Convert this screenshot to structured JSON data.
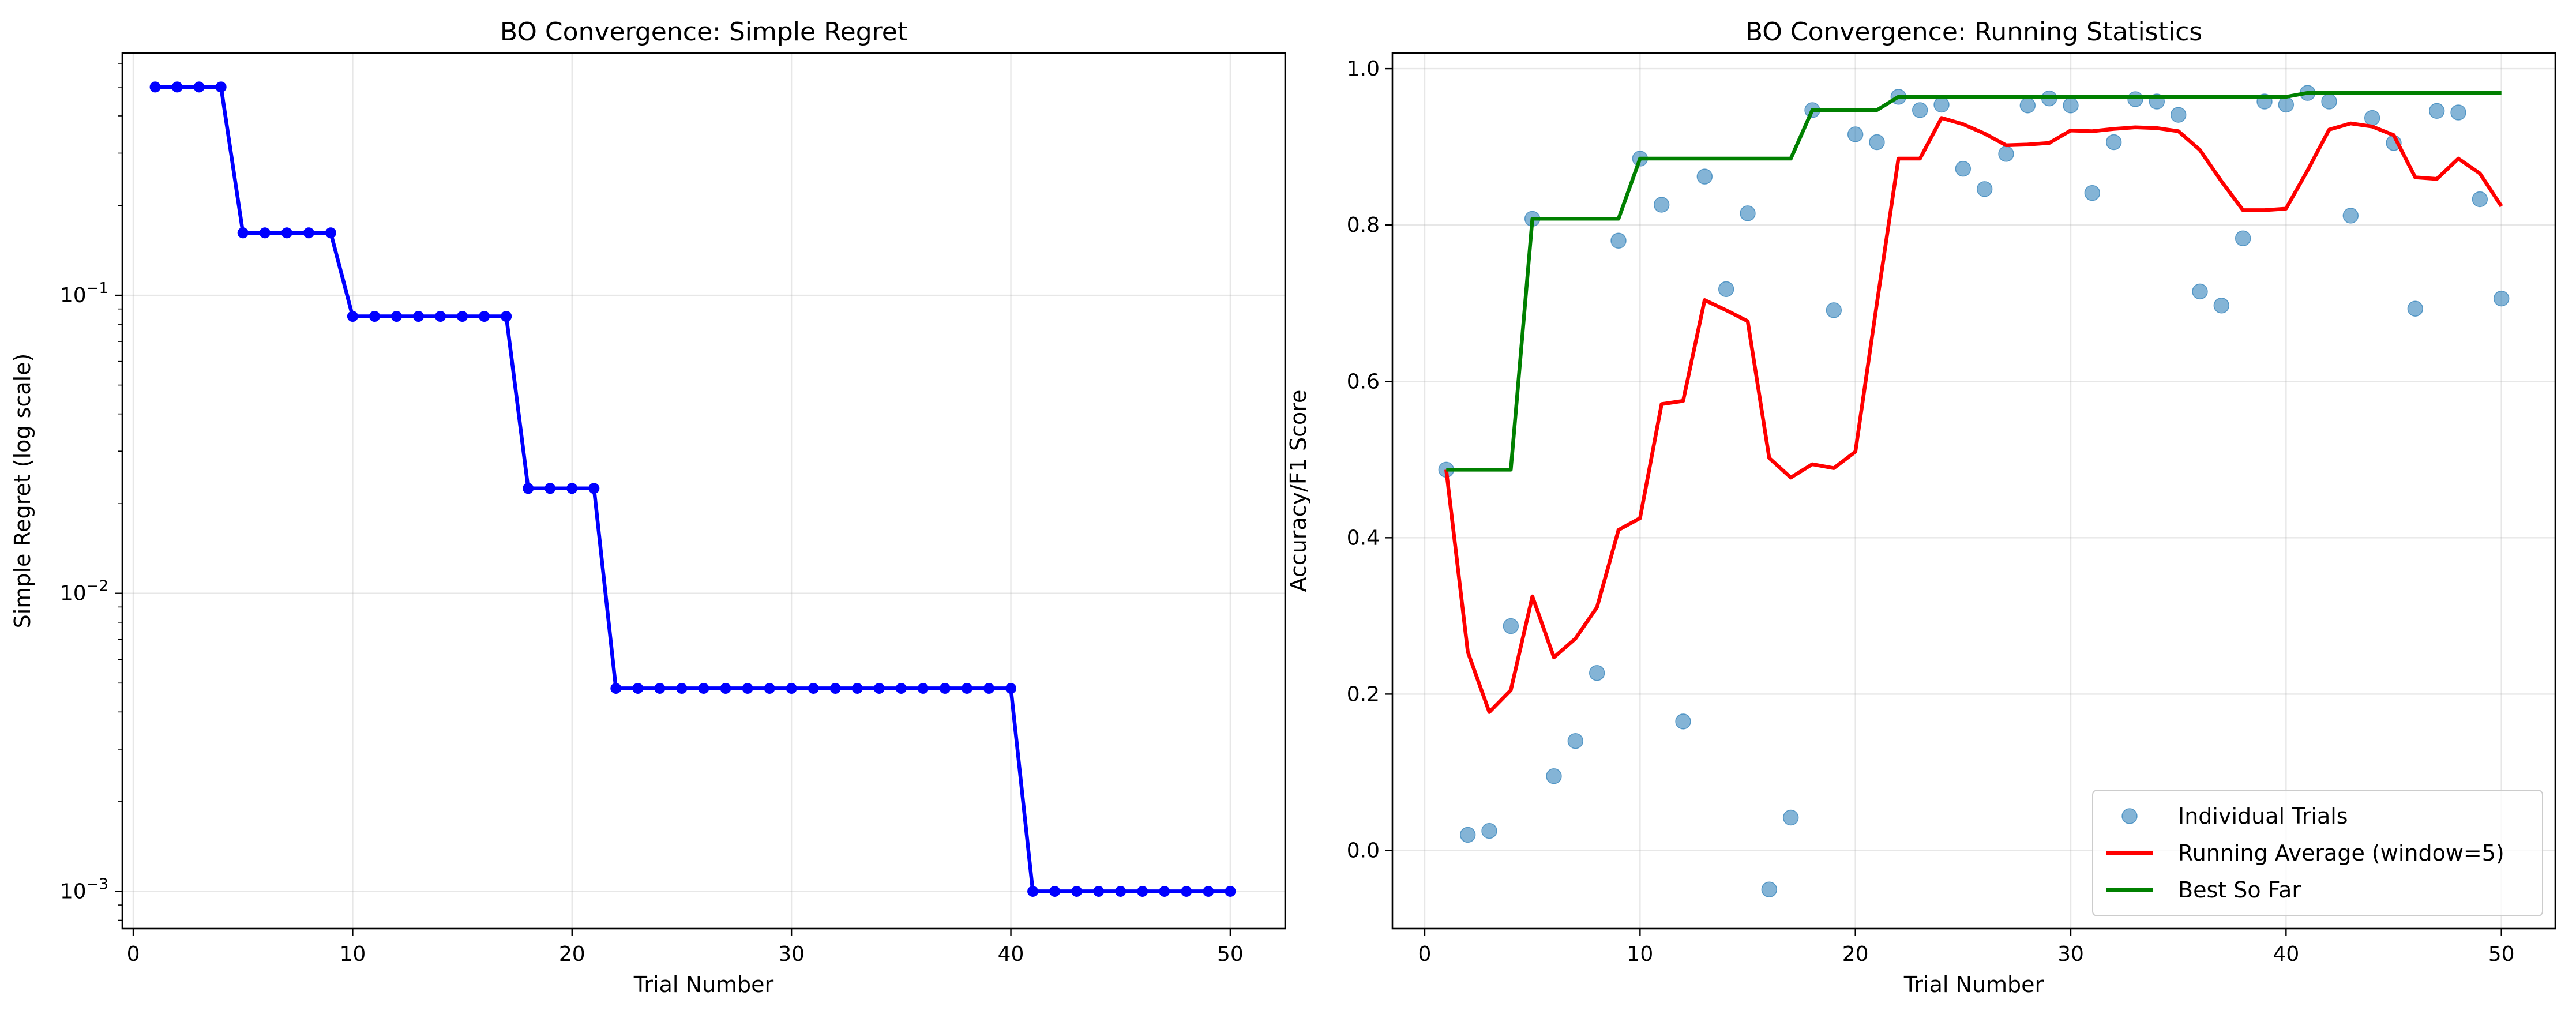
{
  "chart_data": [
    {
      "type": "line",
      "title": "BO Convergence: Simple Regret",
      "xlabel": "Trial Number",
      "ylabel": "Simple Regret (log scale)",
      "yscale": "log",
      "xlim": [
        -0.5,
        52.5
      ],
      "ylim": [
        0.00075,
        0.65
      ],
      "xticks": [
        0,
        10,
        20,
        30,
        40,
        50
      ],
      "yticks": [
        {
          "value": 0.001,
          "base": "10",
          "exp": "−3"
        },
        {
          "value": 0.01,
          "base": "10",
          "exp": "−2"
        },
        {
          "value": 0.1,
          "base": "10",
          "exp": "−1"
        }
      ],
      "grid": true,
      "series": [
        {
          "color": "#0000ff",
          "marker": "circle",
          "x": [
            1,
            2,
            3,
            4,
            5,
            6,
            7,
            8,
            9,
            10,
            11,
            12,
            13,
            14,
            15,
            16,
            17,
            18,
            19,
            20,
            21,
            22,
            23,
            24,
            25,
            26,
            27,
            28,
            29,
            30,
            31,
            32,
            33,
            34,
            35,
            36,
            37,
            38,
            39,
            40,
            41,
            42,
            43,
            44,
            45,
            46,
            47,
            48,
            49,
            50
          ],
          "y": [
            0.5,
            0.5,
            0.5,
            0.5,
            0.162,
            0.162,
            0.162,
            0.162,
            0.162,
            0.085,
            0.085,
            0.085,
            0.085,
            0.085,
            0.085,
            0.085,
            0.085,
            0.0225,
            0.0225,
            0.0225,
            0.0225,
            0.0048,
            0.0048,
            0.0048,
            0.0048,
            0.0048,
            0.0048,
            0.0048,
            0.0048,
            0.0048,
            0.0048,
            0.0048,
            0.0048,
            0.0048,
            0.0048,
            0.0048,
            0.0048,
            0.0048,
            0.0048,
            0.0048,
            0.001,
            0.001,
            0.001,
            0.001,
            0.001,
            0.001,
            0.001,
            0.001,
            0.001,
            0.001
          ]
        }
      ]
    },
    {
      "type": "line",
      "title": "BO Convergence: Running Statistics",
      "xlabel": "Trial Number",
      "ylabel": "Accuracy/F1 Score",
      "xlim": [
        -1.5,
        52.5
      ],
      "ylim": [
        -0.1,
        1.02
      ],
      "xticks": [
        0,
        10,
        20,
        30,
        40,
        50
      ],
      "yticks": [
        0.0,
        0.2,
        0.4,
        0.6,
        0.8,
        1.0
      ],
      "grid": true,
      "legend_position": "lower-right",
      "series": [
        {
          "name": "Individual Trials",
          "kind": "scatter",
          "color": "#1f77b4",
          "x": [
            1,
            2,
            3,
            4,
            5,
            6,
            7,
            8,
            9,
            10,
            11,
            12,
            13,
            14,
            15,
            16,
            17,
            18,
            19,
            20,
            21,
            22,
            23,
            24,
            25,
            26,
            27,
            28,
            29,
            30,
            31,
            32,
            33,
            34,
            35,
            36,
            37,
            38,
            39,
            40,
            41,
            42,
            43,
            44,
            45,
            46,
            47,
            48,
            49,
            50
          ],
          "y": [
            0.487,
            0.02,
            0.025,
            0.287,
            0.808,
            0.095,
            0.14,
            0.227,
            0.78,
            0.885,
            0.826,
            0.165,
            0.862,
            0.718,
            0.815,
            -0.05,
            0.042,
            0.947,
            0.691,
            0.916,
            0.906,
            0.964,
            0.947,
            0.954,
            0.872,
            0.846,
            0.891,
            0.953,
            0.962,
            0.953,
            0.841,
            0.906,
            0.961,
            0.958,
            0.941,
            0.715,
            0.697,
            0.783,
            0.958,
            0.954,
            0.969,
            0.958,
            0.812,
            0.937,
            0.905,
            0.693,
            0.946,
            0.944,
            0.833,
            0.706
          ]
        },
        {
          "name": "Running Average (window=5)",
          "kind": "line",
          "color": "#ff0000",
          "x": [
            1,
            2,
            3,
            4,
            5,
            6,
            7,
            8,
            9,
            10,
            11,
            12,
            13,
            14,
            15,
            16,
            17,
            18,
            19,
            20,
            21,
            22,
            23,
            24,
            25,
            26,
            27,
            28,
            29,
            30,
            31,
            32,
            33,
            34,
            35,
            36,
            37,
            38,
            39,
            40,
            41,
            42,
            43,
            44,
            45,
            46,
            47,
            48,
            49,
            50
          ],
          "y": [
            0.487,
            0.254,
            0.177,
            0.205,
            0.325,
            0.247,
            0.271,
            0.311,
            0.41,
            0.425,
            0.571,
            0.575,
            0.704,
            0.691,
            0.677,
            0.502,
            0.477,
            0.494,
            0.489,
            0.51,
            0.7,
            0.885,
            0.885,
            0.937,
            0.929,
            0.917,
            0.902,
            0.903,
            0.905,
            0.921,
            0.92,
            0.923,
            0.925,
            0.924,
            0.92,
            0.896,
            0.856,
            0.819,
            0.819,
            0.821,
            0.87,
            0.922,
            0.93,
            0.926,
            0.915,
            0.861,
            0.859,
            0.885,
            0.866,
            0.824
          ]
        },
        {
          "name": "Best So Far",
          "kind": "line",
          "color": "#008000",
          "x": [
            1,
            2,
            3,
            4,
            5,
            6,
            7,
            8,
            9,
            10,
            11,
            12,
            13,
            14,
            15,
            16,
            17,
            18,
            19,
            20,
            21,
            22,
            23,
            24,
            25,
            26,
            27,
            28,
            29,
            30,
            31,
            32,
            33,
            34,
            35,
            36,
            37,
            38,
            39,
            40,
            41,
            42,
            43,
            44,
            45,
            46,
            47,
            48,
            49,
            50
          ],
          "y": [
            0.487,
            0.487,
            0.487,
            0.487,
            0.808,
            0.808,
            0.808,
            0.808,
            0.808,
            0.885,
            0.885,
            0.885,
            0.885,
            0.885,
            0.885,
            0.885,
            0.885,
            0.947,
            0.947,
            0.947,
            0.947,
            0.964,
            0.964,
            0.964,
            0.964,
            0.964,
            0.964,
            0.964,
            0.964,
            0.964,
            0.964,
            0.964,
            0.964,
            0.964,
            0.964,
            0.964,
            0.964,
            0.964,
            0.964,
            0.964,
            0.969,
            0.969,
            0.969,
            0.969,
            0.969,
            0.969,
            0.969,
            0.969,
            0.969,
            0.969
          ]
        }
      ]
    }
  ]
}
